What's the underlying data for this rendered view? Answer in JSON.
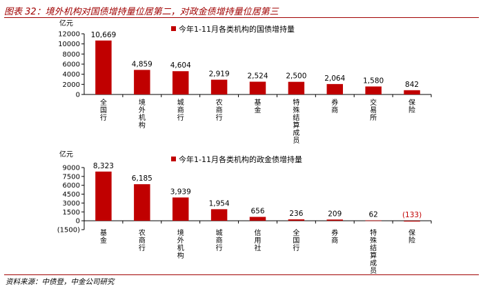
{
  "header": {
    "title": "图表 32：境外机构对国债增持量位居第二，对政金债增持量位居第三"
  },
  "footer": {
    "source": "资料来源：中债登，中金公司研究"
  },
  "colors": {
    "bar": "#c00000",
    "accent": "#a00000",
    "negative_label": "#c00000"
  },
  "chart_data": [
    {
      "type": "bar",
      "legend": "今年1-11月各类机构的国债增持量",
      "unit": "亿元",
      "categories": [
        "全国行",
        "境外机构",
        "城商行",
        "农商行",
        "基金",
        "特殊结算成员",
        "券商",
        "交易所",
        "保险"
      ],
      "values": [
        10669,
        4859,
        4604,
        2919,
        2524,
        2500,
        2064,
        1580,
        842
      ],
      "value_labels": [
        "10,669",
        "4,859",
        "4,604",
        "2,919",
        "2,524",
        "2,500",
        "2,064",
        "1,580",
        "842"
      ],
      "ylim": [
        0,
        12000
      ],
      "yticks": [
        0,
        2000,
        4000,
        6000,
        8000,
        10000,
        12000
      ],
      "legend_position": "top"
    },
    {
      "type": "bar",
      "legend": "今年1-11月各类机构的政金债增持量",
      "unit": "亿元",
      "categories": [
        "基金",
        "农商行",
        "境外机构",
        "城商行",
        "信用社",
        "全国行",
        "券商",
        "特殊结算成员",
        "保险"
      ],
      "values": [
        8323,
        6185,
        3939,
        1954,
        656,
        236,
        209,
        62,
        -133
      ],
      "value_labels": [
        "8,323",
        "6,185",
        "3,939",
        "1,954",
        "656",
        "236",
        "209",
        "62",
        "(133)"
      ],
      "ylim": [
        -1500,
        9000
      ],
      "yticks": [
        -1500,
        0,
        1500,
        3000,
        4500,
        6000,
        7500,
        9000
      ],
      "legend_position": "top"
    }
  ]
}
